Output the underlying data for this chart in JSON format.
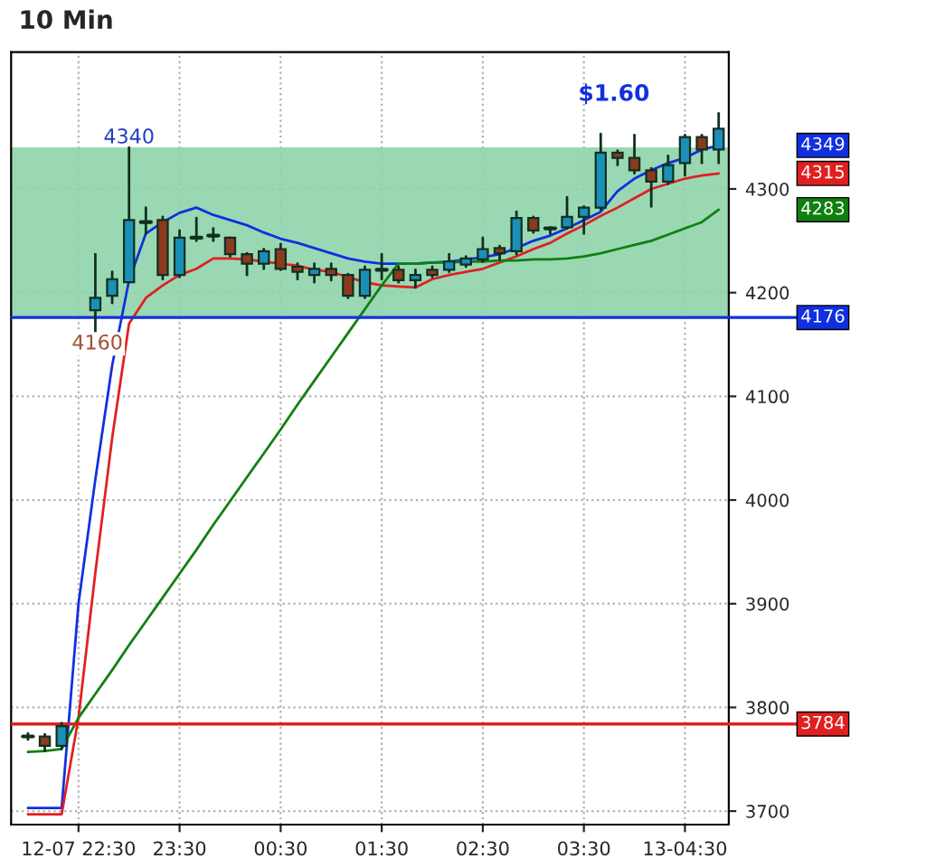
{
  "chart_data": {
    "type": "candlestick",
    "title": "10 Min",
    "categories": [
      null,
      null,
      null,
      "12-07 22:30",
      null,
      null,
      null,
      null,
      null,
      "23:30",
      null,
      null,
      null,
      null,
      null,
      "00:30",
      null,
      null,
      null,
      null,
      null,
      "01:30",
      null,
      null,
      null,
      null,
      null,
      "02:30",
      null,
      null,
      null,
      null,
      null,
      "03:30",
      null,
      null,
      null,
      null,
      null,
      "13-04:30",
      null,
      null
    ],
    "ohlc": [
      [
        3772,
        3775,
        3769,
        3772
      ],
      [
        3772,
        3774,
        3758,
        3763
      ],
      [
        3763,
        3785,
        3760,
        3782
      ],
      null,
      [
        4183,
        4237,
        4160,
        4195
      ],
      [
        4197,
        4220,
        4190,
        4213
      ],
      [
        4210,
        4340,
        4210,
        4270
      ],
      [
        4268,
        4282,
        4257,
        4268
      ],
      [
        4270,
        4273,
        4213,
        4217
      ],
      [
        4217,
        4260,
        4215,
        4253
      ],
      [
        4253,
        4272,
        4250,
        4253
      ],
      [
        4255,
        4262,
        4250,
        4255
      ],
      [
        4253,
        4253,
        4235,
        4237
      ],
      [
        4237,
        4238,
        4217,
        4228
      ],
      [
        4228,
        4242,
        4223,
        4240
      ],
      [
        4242,
        4247,
        4222,
        4223
      ],
      [
        4225,
        4228,
        4213,
        4220
      ],
      [
        4217,
        4228,
        4210,
        4223
      ],
      [
        4223,
        4228,
        4212,
        4217
      ],
      [
        4217,
        4218,
        4195,
        4197
      ],
      [
        4197,
        4225,
        4195,
        4222
      ],
      [
        4222,
        4237,
        4213,
        4222
      ],
      [
        4222,
        4225,
        4210,
        4212
      ],
      [
        4212,
        4222,
        4205,
        4217
      ],
      [
        4222,
        4225,
        4215,
        4217
      ],
      [
        4222,
        4237,
        4220,
        4230
      ],
      [
        4227,
        4235,
        4225,
        4233
      ],
      [
        4232,
        4253,
        4230,
        4242
      ],
      [
        4243,
        4245,
        4232,
        4238
      ],
      [
        4240,
        4278,
        4237,
        4272
      ],
      [
        4272,
        4273,
        4258,
        4260
      ],
      [
        4262,
        4263,
        4257,
        4262
      ],
      [
        4263,
        4292,
        4262,
        4273
      ],
      [
        4273,
        4283,
        4257,
        4282
      ],
      [
        4282,
        4353,
        4280,
        4335
      ],
      [
        4335,
        4337,
        4323,
        4330
      ],
      [
        4330,
        4352,
        4315,
        4318
      ],
      [
        4318,
        4320,
        4283,
        4307
      ],
      [
        4307,
        4332,
        4305,
        4323
      ],
      [
        4325,
        4352,
        4313,
        4350
      ],
      [
        4350,
        4352,
        4325,
        4338
      ],
      [
        4338,
        4373,
        4325,
        4358
      ]
    ],
    "series": [
      {
        "type": "line",
        "color": "#1030e0",
        "values": [
          3703,
          3703,
          3703,
          3900,
          4020,
          4130,
          4212,
          4257,
          4268,
          4277,
          4282,
          4275,
          4270,
          4265,
          4258,
          4252,
          4248,
          4243,
          4238,
          4233,
          4230,
          4228,
          4228,
          4228,
          4229,
          4230,
          4232,
          4234,
          4237,
          4243,
          4250,
          4255,
          4262,
          4270,
          4278,
          4298,
          4310,
          4318,
          4325,
          4330,
          4338,
          4342
        ]
      },
      {
        "type": "line",
        "color": "#e02020",
        "values": [
          3697,
          3697,
          3697,
          3790,
          3930,
          4060,
          4170,
          4195,
          4207,
          4217,
          4223,
          4233,
          4233,
          4232,
          4230,
          4228,
          4226,
          4222,
          4220,
          4215,
          4210,
          4207,
          4206,
          4205,
          4213,
          4217,
          4220,
          4223,
          4229,
          4235,
          4242,
          4248,
          4257,
          4265,
          4274,
          4282,
          4291,
          4300,
          4305,
          4310,
          4313,
          4315
        ]
      },
      {
        "type": "line",
        "color": "#108010",
        "values": [
          3757,
          3758,
          3760,
          3790,
          3813,
          3836,
          3860,
          3883,
          3906,
          3929,
          3952,
          3976,
          3999,
          4022,
          4045,
          4068,
          4092,
          4115,
          4138,
          4161,
          4184,
          4207,
          4228,
          4228,
          4229,
          4229,
          4230,
          4230,
          4231,
          4231,
          4232,
          4232,
          4233,
          4235,
          4238,
          4242,
          4246,
          4250,
          4256,
          4262,
          4268,
          4280
        ]
      }
    ],
    "ylim": [
      3687,
      4432
    ],
    "yticks": [
      3700,
      3800,
      3900,
      4000,
      4100,
      4200,
      4300
    ],
    "bands": [
      {
        "axis": "y",
        "from": 4176,
        "to": 4340,
        "color": "#8fd4ac"
      }
    ],
    "ref_lines": [
      {
        "axis": "y",
        "value": 4176,
        "label": "4176",
        "color": "#1030e0"
      },
      {
        "axis": "y",
        "value": 3784,
        "label": "3784",
        "color": "#e02020"
      }
    ],
    "annotations": [
      {
        "text": "4340",
        "y": 4340
      },
      {
        "text": "4160",
        "y": 4160
      },
      "$1.60",
      "4349",
      "4315",
      "4283"
    ],
    "grid": true
  }
}
